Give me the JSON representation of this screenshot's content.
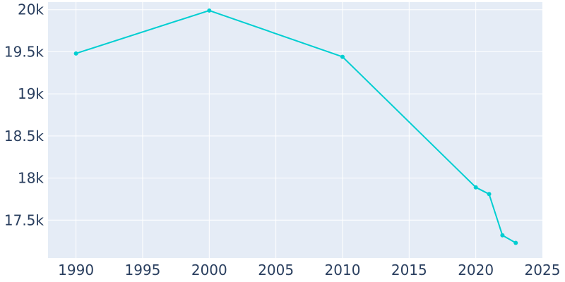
{
  "chart_data": {
    "type": "line",
    "title": "",
    "xlabel": "",
    "ylabel": "",
    "x": [
      1990,
      2000,
      2010,
      2020,
      2021,
      2022,
      2023
    ],
    "series": [
      {
        "values": [
          19480,
          19990,
          19440,
          17890,
          17810,
          17320,
          17230
        ]
      }
    ],
    "xlim": [
      1987.9,
      2025
    ],
    "ylim": [
      17050,
      20090
    ],
    "x_ticks": [
      1990,
      1995,
      2000,
      2005,
      2010,
      2015,
      2020,
      2025
    ],
    "x_tick_labels": [
      "1990",
      "1995",
      "2000",
      "2005",
      "2010",
      "2015",
      "2020",
      "2025"
    ],
    "y_ticks": [
      17500,
      18000,
      18500,
      19000,
      19500,
      20000
    ],
    "y_tick_labels": [
      "17.5k",
      "18k",
      "18.5k",
      "19k",
      "19.5k",
      "20k"
    ],
    "grid": true,
    "legend": "none",
    "colors": {
      "line": "#00ced1",
      "plot_bg": "#e5ecf6",
      "grid": "#ffffff",
      "text": "#2a3f5f"
    }
  }
}
